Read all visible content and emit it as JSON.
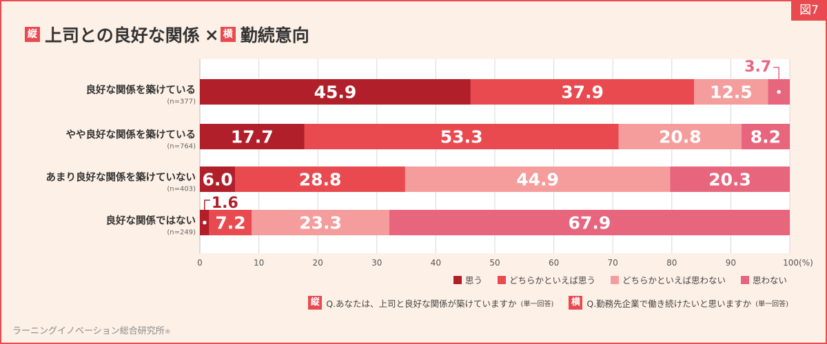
{
  "figure_label": "図7",
  "title": {
    "tag_vertical": "縦",
    "part1": "上司との良好な関係",
    "times": "×",
    "tag_horizontal": "横",
    "part2": "勤続意向"
  },
  "colors": {
    "accent": "#e84a4f",
    "background": "#fdf0e6",
    "series": [
      "#b01f2a",
      "#e84a4f",
      "#f59d9d",
      "#e8657e"
    ]
  },
  "chart_data": {
    "type": "bar",
    "orientation": "horizontal",
    "stacked": true,
    "categories": [
      "良好な関係を築けている",
      "やや良好な関係を築けている",
      "あまり良好な関係を築けていない",
      "良好な関係ではない"
    ],
    "sample_sizes": [
      "(n=377)",
      "(n=764)",
      "(n=403)",
      "(n=249)"
    ],
    "series": [
      {
        "name": "思う",
        "values": [
          45.9,
          17.7,
          6.0,
          1.6
        ]
      },
      {
        "name": "どちらかといえば思う",
        "values": [
          37.9,
          53.3,
          28.8,
          7.2
        ]
      },
      {
        "name": "どちらかといえば思わない",
        "values": [
          12.5,
          20.8,
          44.9,
          23.3
        ]
      },
      {
        "name": "思わない",
        "values": [
          3.7,
          8.2,
          20.3,
          67.9
        ]
      }
    ],
    "xlim": [
      0,
      100
    ],
    "xticks": [
      "0",
      "10",
      "20",
      "30",
      "40",
      "50",
      "60",
      "70",
      "80",
      "90",
      "100(%)"
    ],
    "grid": true,
    "legend_position": "bottom-right",
    "callouts": [
      {
        "category_index": 0,
        "series_index": 3,
        "text": "3.7"
      },
      {
        "category_index": 3,
        "series_index": 0,
        "text": "1.6"
      }
    ]
  },
  "questions": {
    "vertical": {
      "tag": "縦",
      "text": "Q.あなたは、上司と良好な関係が築けていますか",
      "note": "(単一回答)"
    },
    "horizontal": {
      "tag": "横",
      "text": "Q.勤務先企業で働き続けたいと思いますか",
      "note": "(単一回答)"
    }
  },
  "source": "ラーニングイノベーション総合研究所",
  "source_mark": "®"
}
